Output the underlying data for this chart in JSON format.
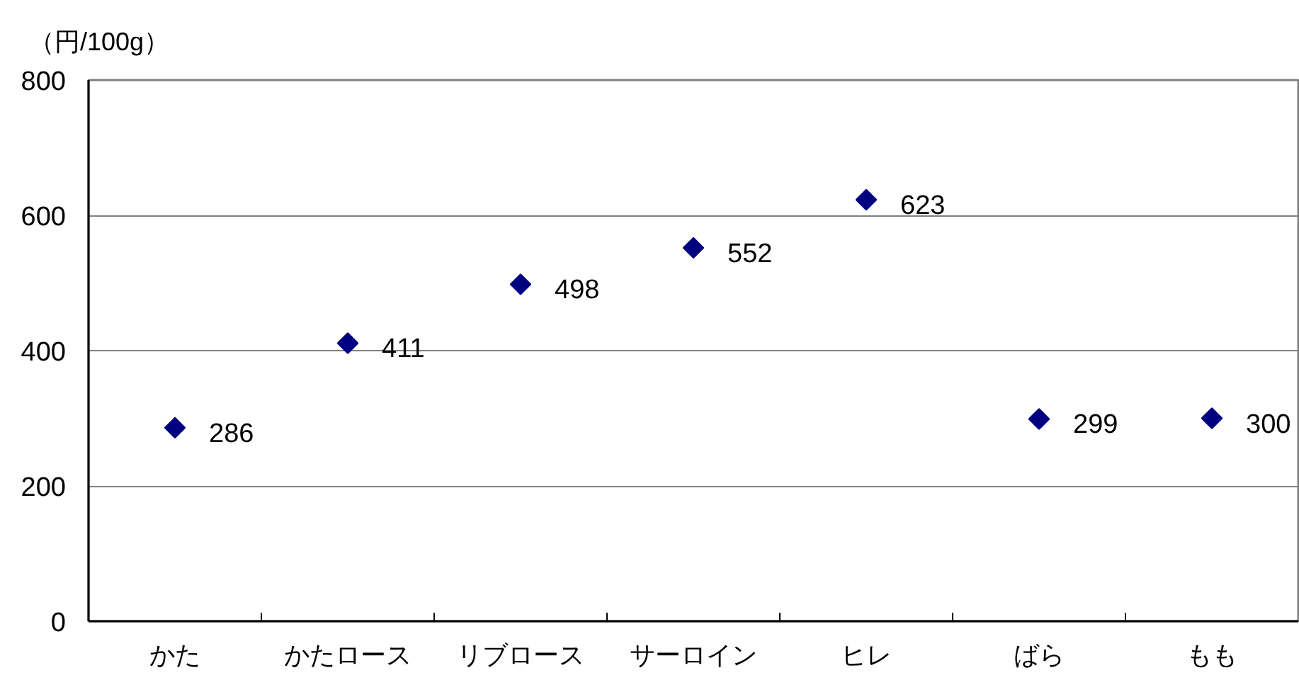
{
  "chart_data": {
    "type": "scatter",
    "ylabel": "（円/100g）",
    "categories": [
      "かた",
      "かたロース",
      "リブロース",
      "サーロイン",
      "ヒレ",
      "ばら",
      "もも"
    ],
    "values": [
      286,
      411,
      498,
      552,
      623,
      299,
      300
    ],
    "color": "#000080",
    "marker": "diamond",
    "ylim": [
      0,
      800
    ],
    "yticks": [
      0,
      200,
      400,
      600,
      800
    ],
    "grid": "y",
    "data_labels": true
  }
}
